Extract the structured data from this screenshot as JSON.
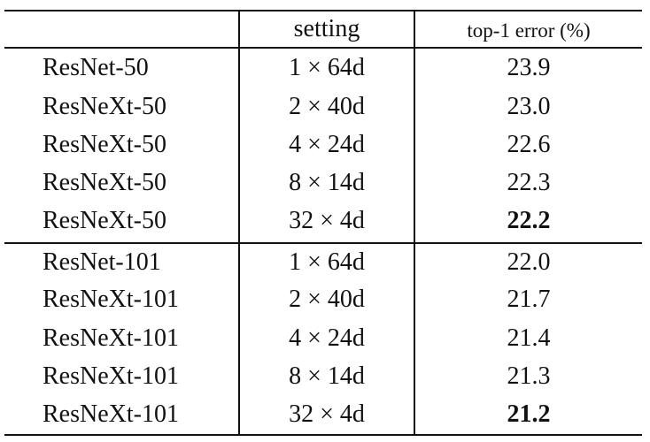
{
  "table": {
    "headers": [
      "",
      "setting",
      "top-1 error (%)"
    ],
    "groups": [
      {
        "rows": [
          {
            "model": "ResNet-50",
            "setting": "1 × 64d",
            "error": "23.9",
            "best": false
          },
          {
            "model": "ResNeXt-50",
            "setting": "2 × 40d",
            "error": "23.0",
            "best": false
          },
          {
            "model": "ResNeXt-50",
            "setting": "4 × 24d",
            "error": "22.6",
            "best": false
          },
          {
            "model": "ResNeXt-50",
            "setting": "8 × 14d",
            "error": "22.3",
            "best": false
          },
          {
            "model": "ResNeXt-50",
            "setting": "32 × 4d",
            "error": "22.2",
            "best": true
          }
        ]
      },
      {
        "rows": [
          {
            "model": "ResNet-101",
            "setting": "1 × 64d",
            "error": "22.0",
            "best": false
          },
          {
            "model": "ResNeXt-101",
            "setting": "2 × 40d",
            "error": "21.7",
            "best": false
          },
          {
            "model": "ResNeXt-101",
            "setting": "4 × 24d",
            "error": "21.4",
            "best": false
          },
          {
            "model": "ResNeXt-101",
            "setting": "8 × 14d",
            "error": "21.3",
            "best": false
          },
          {
            "model": "ResNeXt-101",
            "setting": "32 × 4d",
            "error": "21.2",
            "best": true
          }
        ]
      }
    ]
  }
}
